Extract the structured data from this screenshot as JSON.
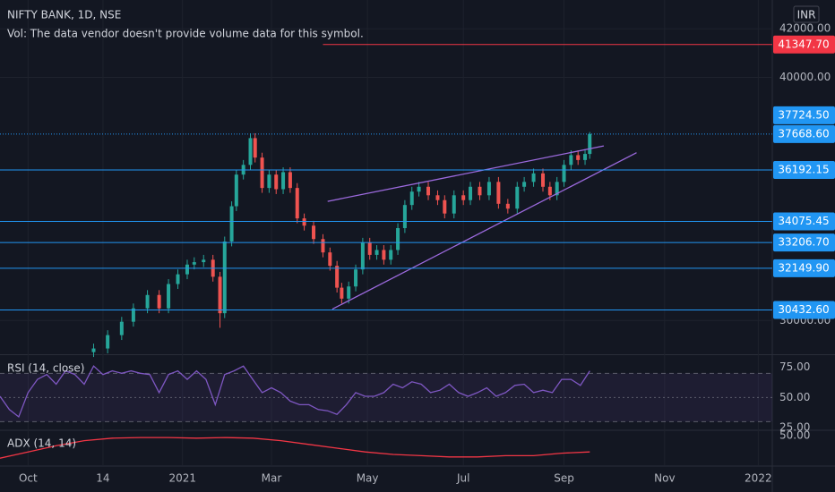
{
  "header": {
    "symbol": "NIFTY BANK, 1D, NSE",
    "volume_note": "Vol: The data vendor doesn't provide volume data for this symbol.",
    "currency": "INR"
  },
  "chart_data": [
    {
      "type": "candlestick",
      "xlim": [
        0,
        330
      ],
      "xticks": [
        {
          "value": 12,
          "label": "Oct"
        },
        {
          "value": 44,
          "label": "14"
        },
        {
          "value": 78,
          "label": "2021"
        },
        {
          "value": 116,
          "label": "Mar"
        },
        {
          "value": 157,
          "label": "May"
        },
        {
          "value": 198,
          "label": "Jul"
        },
        {
          "value": 241,
          "label": "Sep"
        },
        {
          "value": 284,
          "label": "Nov"
        },
        {
          "value": 324,
          "label": "2022"
        }
      ],
      "ylim": [
        28650,
        43180
      ],
      "yticks": [
        {
          "value": 42000,
          "label": "42000.00"
        },
        {
          "value": 40000,
          "label": "40000.00"
        },
        {
          "value": 30000,
          "label": "30000.00"
        }
      ],
      "grid": true,
      "up_color": "#26a69a",
      "down_color": "#ef5350",
      "candles": {
        "x": [
          40,
          46,
          52,
          57,
          63,
          68,
          72,
          76,
          80,
          83,
          87,
          91,
          94,
          96,
          99,
          101,
          104,
          107,
          109,
          112,
          115,
          118,
          121,
          124,
          127,
          130,
          134,
          138,
          141,
          144,
          146,
          149,
          152,
          155,
          158,
          161,
          164,
          167,
          170,
          173,
          176,
          179,
          183,
          187,
          190,
          194,
          198,
          201,
          205,
          209,
          213,
          217,
          221,
          224,
          228,
          232,
          235,
          238,
          241,
          244,
          247,
          250,
          252
        ],
        "open": [
          28700,
          28850,
          29400,
          29950,
          30500,
          31050,
          30500,
          31500,
          31900,
          32300,
          32400,
          32500,
          31800,
          30300,
          33250,
          34700,
          36000,
          36400,
          37500,
          36700,
          35450,
          36000,
          35400,
          36100,
          35450,
          34200,
          33900,
          33350,
          32800,
          32250,
          31350,
          30900,
          31400,
          32100,
          33200,
          32700,
          32900,
          32500,
          32900,
          33800,
          34750,
          35300,
          35500,
          35150,
          34950,
          34400,
          35150,
          34950,
          35500,
          35150,
          35700,
          34800,
          34600,
          35500,
          35700,
          36050,
          35500,
          35150,
          35700,
          36400,
          36800,
          36600,
          36850
        ],
        "high": [
          29050,
          29600,
          30150,
          30700,
          31250,
          31250,
          31700,
          32100,
          32500,
          32600,
          32700,
          32700,
          32000,
          33450,
          34900,
          36200,
          36600,
          37700,
          37700,
          36900,
          36200,
          36200,
          36300,
          36300,
          35650,
          34400,
          34100,
          33550,
          33000,
          32450,
          31550,
          31600,
          32300,
          33400,
          33400,
          33100,
          33100,
          33100,
          34000,
          34950,
          35500,
          35700,
          35700,
          35350,
          35150,
          35350,
          35350,
          35700,
          35700,
          35900,
          35900,
          35000,
          35700,
          35900,
          36250,
          36250,
          35700,
          35900,
          36600,
          37000,
          37000,
          37050,
          37750
        ],
        "low": [
          28500,
          28650,
          29200,
          29750,
          30300,
          30300,
          30300,
          31300,
          31700,
          32100,
          32200,
          31600,
          29700,
          30100,
          33050,
          34500,
          35800,
          36200,
          36500,
          35250,
          35250,
          35200,
          35200,
          35250,
          34000,
          33700,
          33150,
          32600,
          32050,
          31150,
          30700,
          30700,
          31200,
          31900,
          32500,
          32500,
          32300,
          32300,
          32700,
          33600,
          34550,
          35100,
          34950,
          34750,
          34200,
          34200,
          34750,
          34750,
          34950,
          34950,
          34600,
          34400,
          34400,
          35300,
          35500,
          35300,
          34950,
          34950,
          35500,
          36200,
          36400,
          36400,
          36650
        ],
        "close": [
          28850,
          29400,
          29950,
          30500,
          31050,
          30500,
          31500,
          31900,
          32300,
          32400,
          32500,
          31800,
          30300,
          33250,
          34700,
          36000,
          36400,
          37500,
          36700,
          35450,
          36000,
          35400,
          36100,
          35450,
          34200,
          33900,
          33350,
          32800,
          32250,
          31350,
          30900,
          31400,
          32100,
          33200,
          32700,
          32900,
          32500,
          32900,
          33800,
          34750,
          35300,
          35500,
          35150,
          34950,
          34400,
          35150,
          34950,
          35500,
          35150,
          35700,
          34800,
          34600,
          35500,
          35700,
          36050,
          35500,
          35150,
          35700,
          36400,
          36800,
          36600,
          36850,
          37668.6
        ]
      },
      "price_labels": [
        {
          "value": 41347.7,
          "label": "41347.70",
          "color": "#f23645",
          "line": "solid",
          "x_start": 138
        },
        {
          "value": 37724.5,
          "label": "37724.50",
          "color": "#2196f3",
          "line": "none"
        },
        {
          "value": 37668.6,
          "label": "37668.60",
          "color": "#2196f3",
          "line": "dotted"
        },
        {
          "value": 36192.15,
          "label": "36192.15",
          "color": "#2196f3",
          "line": "solid"
        },
        {
          "value": 34075.45,
          "label": "34075.45",
          "color": "#2196f3",
          "line": "solid"
        },
        {
          "value": 33206.7,
          "label": "33206.70",
          "color": "#2196f3",
          "line": "solid"
        },
        {
          "value": 32149.9,
          "label": "32149.90",
          "color": "#2196f3",
          "line": "solid"
        },
        {
          "value": 30432.6,
          "label": "30432.60",
          "color": "#2196f3",
          "line": "solid"
        }
      ],
      "trendline_color": "#9c6ade",
      "trendlines": [
        {
          "x": [
            140,
            258
          ],
          "y": [
            34900,
            37180
          ]
        },
        {
          "x": [
            142,
            272
          ],
          "y": [
            30470,
            36900
          ]
        }
      ]
    },
    {
      "type": "line",
      "title": "RSI (14, close)",
      "color": "#7e57c2",
      "xlim": [
        0,
        330
      ],
      "ylim": [
        23.6,
        84.3
      ],
      "yticks": [
        {
          "value": 75,
          "label": "75.00"
        },
        {
          "value": 50,
          "label": "50.00"
        },
        {
          "value": 25,
          "label": "25.00"
        }
      ],
      "bands": [
        70,
        50,
        30
      ],
      "x": [
        0,
        4,
        8,
        12,
        16,
        20,
        24,
        28,
        32,
        36,
        40,
        44,
        48,
        52,
        56,
        60,
        64,
        68,
        72,
        76,
        80,
        84,
        88,
        92,
        96,
        100,
        104,
        108,
        112,
        116,
        120,
        124,
        128,
        132,
        136,
        140,
        144,
        148,
        152,
        156,
        160,
        164,
        168,
        172,
        176,
        180,
        184,
        188,
        192,
        196,
        200,
        204,
        208,
        212,
        216,
        220,
        224,
        228,
        232,
        236,
        240,
        244,
        248,
        252
      ],
      "values": [
        51,
        40,
        34,
        54,
        65,
        69,
        61,
        72,
        69,
        61,
        76,
        69,
        72,
        70,
        72,
        70,
        69,
        54,
        69,
        72,
        65,
        72,
        65,
        44,
        69,
        72,
        76,
        65,
        54,
        58,
        54,
        47,
        44,
        44,
        40,
        39,
        36,
        44,
        54,
        51,
        51,
        54,
        61,
        58,
        63,
        61,
        54,
        56,
        61,
        54,
        51,
        54,
        58,
        51,
        54,
        60,
        61,
        54,
        56,
        54,
        65,
        65,
        60,
        72
      ]
    },
    {
      "type": "line",
      "title": "ADX (14, 14)",
      "color": "#f23645",
      "xlim": [
        0,
        330
      ],
      "ylim": [
        26.4,
        53.6
      ],
      "yticks": [
        {
          "value": 50,
          "label": "50.00"
        }
      ],
      "x": [
        0,
        12,
        24,
        36,
        48,
        60,
        72,
        84,
        96,
        108,
        120,
        132,
        144,
        156,
        168,
        180,
        192,
        204,
        216,
        228,
        240,
        252
      ],
      "values": [
        32,
        37,
        42,
        46,
        48,
        48.5,
        48.5,
        48,
        48.5,
        48,
        46,
        43,
        40,
        37,
        35,
        34,
        33,
        33,
        34,
        34,
        36,
        37
      ]
    }
  ]
}
